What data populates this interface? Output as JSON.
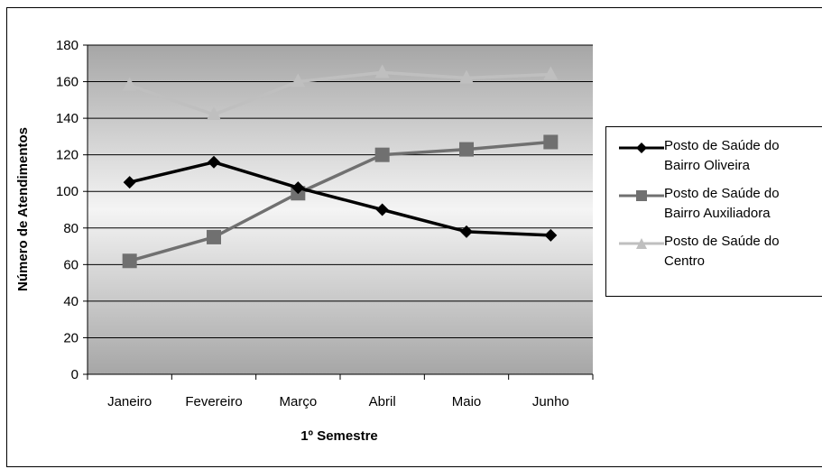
{
  "chart_data": {
    "type": "line",
    "categories": [
      "Janeiro",
      "Fevereiro",
      "Março",
      "Abril",
      "Maio",
      "Junho"
    ],
    "series": [
      {
        "name": "Posto de Saúde do Bairro Oliveira",
        "values": [
          105,
          116,
          102,
          90,
          78,
          76
        ],
        "color": "#000000",
        "marker": "diamond"
      },
      {
        "name": "Posto de Saúde do Bairro Auxiliadora",
        "values": [
          62,
          75,
          99,
          120,
          123,
          127
        ],
        "color": "#707070",
        "marker": "square"
      },
      {
        "name": "Posto de Saúde do Centro",
        "values": [
          158,
          142,
          160,
          165,
          162,
          164
        ],
        "color": "#bfbfbf",
        "marker": "triangle"
      }
    ],
    "title": "",
    "xlabel": "1º Semestre",
    "ylabel": "Número de Atendimentos",
    "ylim": [
      0,
      180
    ],
    "yticks": [
      "0",
      "20",
      "40",
      "60",
      "80",
      "100",
      "120",
      "140",
      "160",
      "180"
    ],
    "grid": true,
    "legend_position": "right"
  },
  "legend": {
    "items": [
      {
        "line1": "Posto de Saúde do",
        "line2": "Bairro Oliveira"
      },
      {
        "line1": "Posto de Saúde do",
        "line2": "Bairro Auxiliadora"
      },
      {
        "line1": "Posto de Saúde do",
        "line2": "Centro"
      }
    ]
  }
}
